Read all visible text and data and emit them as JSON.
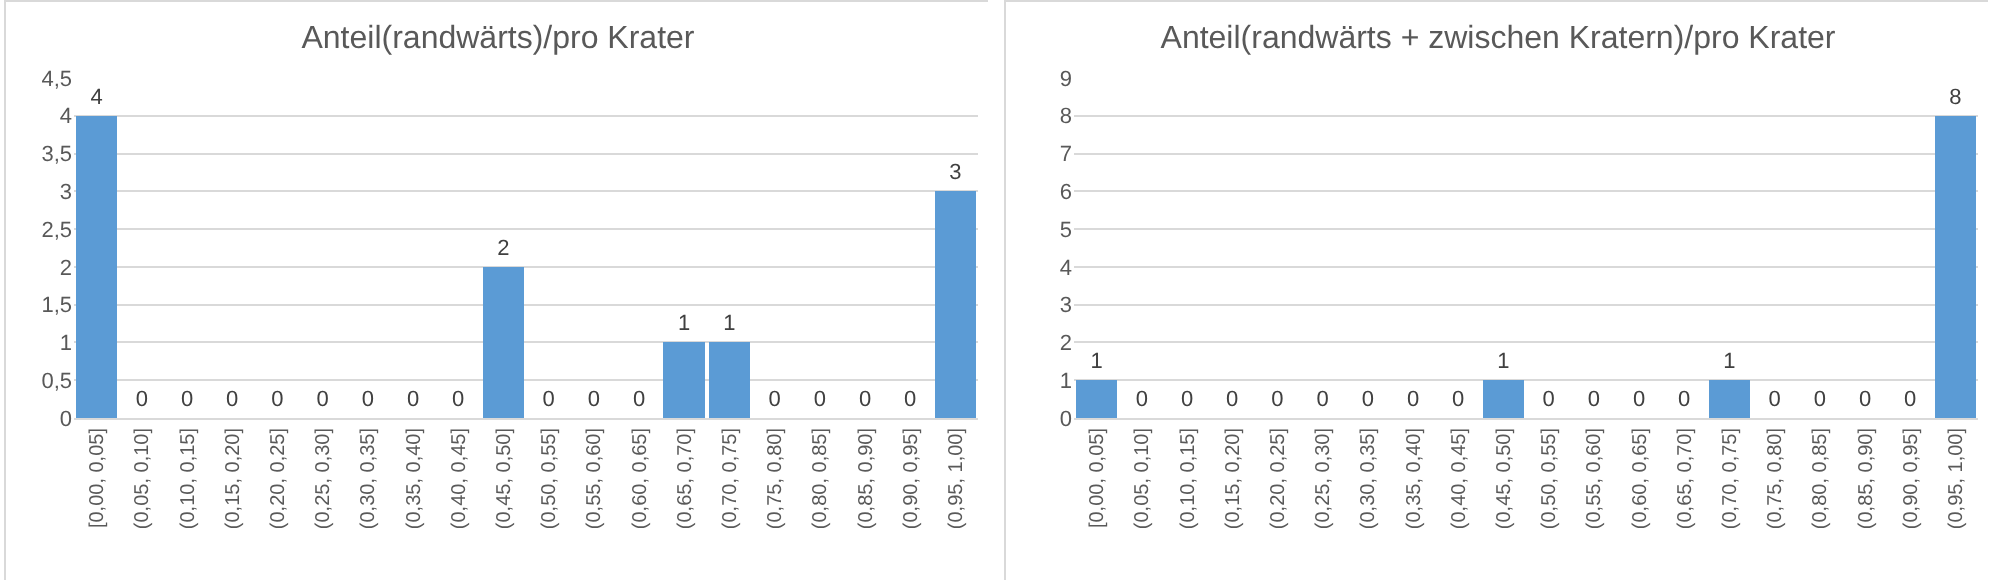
{
  "chart_data": [
    {
      "type": "bar",
      "title": "Anteil(randwärts)/pro Krater",
      "categories": [
        "[0,00, 0,05]",
        "(0,05, 0,10]",
        "(0,10, 0,15]",
        "(0,15, 0,20]",
        "(0,20, 0,25]",
        "(0,25, 0,30]",
        "(0,30, 0,35]",
        "(0,35, 0,40]",
        "(0,40, 0,45]",
        "(0,45, 0,50]",
        "(0,50, 0,55]",
        "(0,55, 0,60]",
        "(0,60, 0,65]",
        "(0,65, 0,70]",
        "(0,70, 0,75]",
        "(0,75, 0,80]",
        "(0,80, 0,85]",
        "(0,85, 0,90]",
        "(0,90, 0,95]",
        "(0,95, 1,00]"
      ],
      "values": [
        4,
        0,
        0,
        0,
        0,
        0,
        0,
        0,
        0,
        2,
        0,
        0,
        0,
        1,
        1,
        0,
        0,
        0,
        0,
        3
      ],
      "color": "#5b9bd5",
      "ylim": [
        0,
        4.5
      ],
      "yticks": [
        0,
        {
          "value": 0.5,
          "label": "0,5"
        },
        1,
        {
          "value": 1.5,
          "label": "1,5"
        },
        2,
        {
          "value": 2.5,
          "label": "2,5"
        },
        3,
        {
          "value": 3.5,
          "label": "3,5"
        },
        4,
        {
          "value": 4.5,
          "label": "4,5"
        }
      ],
      "grid": "y",
      "data_labels": true
    },
    {
      "type": "bar",
      "title": "Anteil(randwärts + zwischen Kratern)/pro Krater",
      "categories": [
        "[0,00, 0,05]",
        "(0,05, 0,10]",
        "(0,10, 0,15]",
        "(0,15, 0,20]",
        "(0,20, 0,25]",
        "(0,25, 0,30]",
        "(0,30, 0,35]",
        "(0,35, 0,40]",
        "(0,40, 0,45]",
        "(0,45, 0,50]",
        "(0,50, 0,55]",
        "(0,55, 0,60]",
        "(0,60, 0,65]",
        "(0,65, 0,70]",
        "(0,70, 0,75]",
        "(0,75, 0,80]",
        "(0,80, 0,85]",
        "(0,85, 0,90]",
        "(0,90, 0,95]",
        "(0,95, 1,00]"
      ],
      "values": [
        1,
        0,
        0,
        0,
        0,
        0,
        0,
        0,
        0,
        1,
        0,
        0,
        0,
        0,
        1,
        0,
        0,
        0,
        0,
        8
      ],
      "color": "#5b9bd5",
      "ylim": [
        0,
        9
      ],
      "yticks": [
        0,
        1,
        2,
        3,
        4,
        5,
        6,
        7,
        8,
        9
      ],
      "grid": "y",
      "data_labels": true
    }
  ]
}
